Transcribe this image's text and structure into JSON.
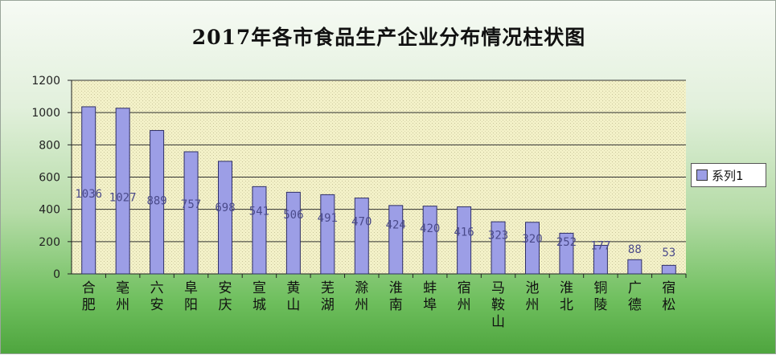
{
  "chart_data": {
    "type": "bar",
    "title": "2017年各市食品生产企业分布情况柱状图",
    "categories": [
      "合肥",
      "亳州",
      "六安",
      "阜阳",
      "安庆",
      "宣城",
      "黄山",
      "芜湖",
      "滁州",
      "淮南",
      "蚌埠",
      "宿州",
      "马鞍山",
      "池州",
      "淮北",
      "铜陵",
      "广德",
      "宿松"
    ],
    "series": [
      {
        "name": "系列1",
        "values": [
          1036,
          1027,
          889,
          757,
          698,
          541,
          506,
          491,
          470,
          424,
          420,
          416,
          323,
          320,
          252,
          177,
          88,
          53
        ]
      }
    ],
    "ylim": [
      0,
      1200
    ],
    "yticks": [
      "0",
      "200",
      "400",
      "600",
      "800",
      "1000",
      "1200"
    ],
    "grid": true,
    "legend_position": "right",
    "colors": {
      "bar": "#9c9ee6",
      "bar_edge": "#2f2f66",
      "plot_bg": "#f4f2cc",
      "grid": "#333333"
    }
  }
}
